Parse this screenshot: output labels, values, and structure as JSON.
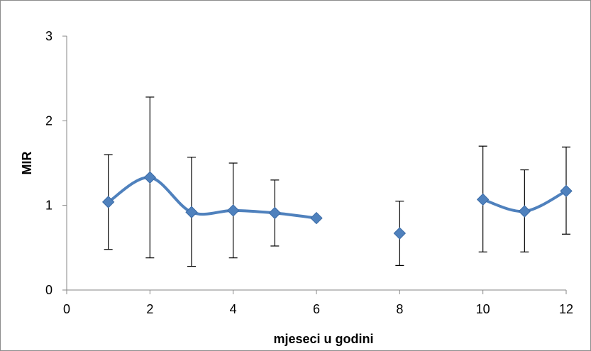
{
  "chart_data": {
    "type": "scatter",
    "title": "",
    "xlabel": "mjeseci u godini",
    "ylabel": "MIR",
    "xlim": [
      0,
      12
    ],
    "ylim": [
      0,
      3
    ],
    "x_ticks": [
      "0",
      "2",
      "4",
      "6",
      "8",
      "10",
      "12"
    ],
    "y_ticks": [
      "0",
      "1",
      "2",
      "3"
    ],
    "grid": false,
    "legend": "none",
    "series_color": "#4f81bd",
    "errorbar_color": "#000000",
    "series": [
      {
        "points": [
          {
            "x": 1,
            "y": 1.04,
            "low": 0.48,
            "high": 1.6
          },
          {
            "x": 2,
            "y": 1.33,
            "low": 0.38,
            "high": 2.28
          },
          {
            "x": 3,
            "y": 0.92,
            "low": 0.28,
            "high": 1.57
          },
          {
            "x": 4,
            "y": 0.94,
            "low": 0.38,
            "high": 1.5
          },
          {
            "x": 5,
            "y": 0.91,
            "low": 0.52,
            "high": 1.3
          },
          {
            "x": 6,
            "y": 0.85,
            "low": null,
            "high": null
          },
          {
            "x": 8,
            "y": 0.67,
            "low": 0.29,
            "high": 1.05
          },
          {
            "x": 10,
            "y": 1.07,
            "low": 0.45,
            "high": 1.7
          },
          {
            "x": 11,
            "y": 0.93,
            "low": 0.45,
            "high": 1.42
          },
          {
            "x": 12,
            "y": 1.17,
            "low": 0.66,
            "high": 1.69
          }
        ],
        "line_segments": [
          [
            1,
            2,
            3,
            4,
            5,
            6
          ],
          [
            10,
            11,
            12
          ]
        ]
      }
    ]
  }
}
